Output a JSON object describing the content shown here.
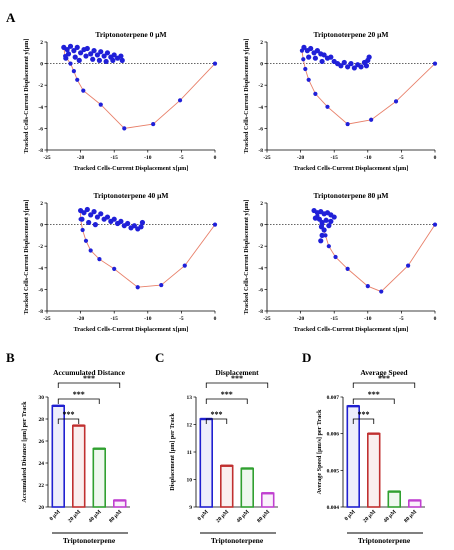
{
  "panel_labels": {
    "A": "A",
    "B": "B",
    "C": "C",
    "D": "D"
  },
  "colors": {
    "track": "#e8806a",
    "dot": "#2020d8",
    "zero_line": "#333333"
  },
  "chart_data": [
    {
      "type": "scatter",
      "id": "t0",
      "title": "Triptonoterpene 0 μM",
      "xlabel": "Tracked Cells-Current Displacement x[μm]",
      "ylabel": "Tracked Cells-Current Displacement y[μm]",
      "xlim": [
        -25,
        0
      ],
      "ylim": [
        -8,
        2
      ],
      "xticks": [
        -25,
        -20,
        -15,
        -10,
        -5,
        0
      ],
      "yticks": [
        2,
        0,
        -2,
        -4,
        -6,
        -8
      ],
      "hline": 0,
      "cluster": [
        [
          -22.5,
          1.5
        ],
        [
          -22,
          1.3
        ],
        [
          -21.5,
          1.6
        ],
        [
          -21,
          1.2
        ],
        [
          -20.5,
          1.5
        ],
        [
          -20,
          1.0
        ],
        [
          -19.5,
          1.3
        ],
        [
          -19,
          1.4
        ],
        [
          -18.5,
          0.9
        ],
        [
          -18,
          1.2
        ],
        [
          -17.5,
          0.8
        ],
        [
          -17,
          1.1
        ],
        [
          -16.5,
          0.7
        ],
        [
          -16,
          1.0
        ],
        [
          -15.5,
          0.6
        ],
        [
          -15,
          0.8
        ],
        [
          -14.5,
          0.5
        ],
        [
          -14,
          0.7
        ],
        [
          -13.8,
          0.3
        ],
        [
          -21.8,
          0.9
        ],
        [
          -20.8,
          0.6
        ],
        [
          -20.2,
          0.3
        ],
        [
          -19.2,
          0.7
        ],
        [
          -18.2,
          0.4
        ],
        [
          -17.2,
          0.3
        ],
        [
          -16.2,
          0.2
        ],
        [
          -15.2,
          0.3
        ],
        [
          -22.2,
          0.5
        ]
      ],
      "track": [
        [
          0,
          0
        ],
        [
          -5.2,
          -3.4
        ],
        [
          -9.2,
          -5.6
        ],
        [
          -13.5,
          -6.0
        ],
        [
          -17,
          -3.8
        ],
        [
          -19.6,
          -2.5
        ],
        [
          -20.5,
          -1.5
        ],
        [
          -21,
          -0.7
        ],
        [
          -21.5,
          0
        ],
        [
          -22.3,
          0.7
        ],
        [
          -22.5,
          1.5
        ]
      ]
    },
    {
      "type": "scatter",
      "id": "t20",
      "title": "Triptonoterpene 20 μM",
      "xlabel": "Tracked Cells-Current Displacement x[μm]",
      "ylabel": "Tracked Cells-Current Displacement y[μm]",
      "xlim": [
        -25,
        0
      ],
      "ylim": [
        -8,
        2
      ],
      "xticks": [
        -25,
        -20,
        -15,
        -10,
        -5,
        0
      ],
      "yticks": [
        2,
        0,
        -2,
        -4,
        -6,
        -8
      ],
      "hline": 0,
      "cluster": [
        [
          -19.5,
          1.5
        ],
        [
          -19,
          1.2
        ],
        [
          -18.5,
          1.4
        ],
        [
          -18,
          1.0
        ],
        [
          -17.5,
          1.2
        ],
        [
          -17,
          0.9
        ],
        [
          -16.5,
          0.8
        ],
        [
          -16,
          0.5
        ],
        [
          -15.5,
          0.6
        ],
        [
          -15,
          0.2
        ],
        [
          -14.5,
          0.0
        ],
        [
          -14,
          -0.2
        ],
        [
          -13.5,
          0.1
        ],
        [
          -13,
          -0.3
        ],
        [
          -12.5,
          0.0
        ],
        [
          -12,
          -0.4
        ],
        [
          -11.5,
          -0.1
        ],
        [
          -11,
          -0.3
        ],
        [
          -10.5,
          0.1
        ],
        [
          -10,
          0.3
        ],
        [
          -9.8,
          0.6
        ],
        [
          -10.2,
          -0.2
        ],
        [
          -18.8,
          0.6
        ],
        [
          -17.8,
          0.5
        ],
        [
          -16.8,
          0.2
        ]
      ],
      "track": [
        [
          0,
          0
        ],
        [
          -5.8,
          -3.5
        ],
        [
          -9.5,
          -5.2
        ],
        [
          -13,
          -5.6
        ],
        [
          -16,
          -4.0
        ],
        [
          -17.8,
          -2.8
        ],
        [
          -18.8,
          -1.5
        ],
        [
          -19.3,
          -0.5
        ],
        [
          -19.6,
          0.4
        ],
        [
          -19.8,
          1.2
        ],
        [
          -19.5,
          1.5
        ]
      ]
    },
    {
      "type": "scatter",
      "id": "t40",
      "title": "Triptonoterpene 40 μM",
      "xlabel": "Tracked Cells-Current Displacement x[μm]",
      "ylabel": "Tracked Cells-Current Displacement y[μm]",
      "xlim": [
        -25,
        0
      ],
      "ylim": [
        -8,
        2
      ],
      "xticks": [
        -25,
        -20,
        -15,
        -10,
        -5,
        0
      ],
      "yticks": [
        2,
        0,
        -2,
        -4,
        -6,
        -8
      ],
      "hline": 0,
      "cluster": [
        [
          -20,
          1.3
        ],
        [
          -19.5,
          1.1
        ],
        [
          -19,
          1.4
        ],
        [
          -18.5,
          0.9
        ],
        [
          -18,
          1.2
        ],
        [
          -17.5,
          0.7
        ],
        [
          -17,
          1.0
        ],
        [
          -16.5,
          0.5
        ],
        [
          -16,
          0.7
        ],
        [
          -15.5,
          0.3
        ],
        [
          -15,
          0.5
        ],
        [
          -14.5,
          0.1
        ],
        [
          -14,
          0.3
        ],
        [
          -13.5,
          -0.1
        ],
        [
          -13,
          0.1
        ],
        [
          -12.5,
          -0.3
        ],
        [
          -12,
          -0.1
        ],
        [
          -11.5,
          -0.4
        ],
        [
          -11,
          -0.2
        ],
        [
          -10.8,
          0.2
        ],
        [
          -19.8,
          0.5
        ],
        [
          -18.8,
          0.2
        ],
        [
          -17.8,
          0.0
        ]
      ],
      "track": [
        [
          0,
          0
        ],
        [
          -4.5,
          -3.8
        ],
        [
          -8,
          -5.6
        ],
        [
          -11.5,
          -5.8
        ],
        [
          -15,
          -4.1
        ],
        [
          -17.2,
          -3.2
        ],
        [
          -18.5,
          -2.4
        ],
        [
          -19.2,
          -1.5
        ],
        [
          -19.7,
          -0.5
        ],
        [
          -20,
          0.5
        ],
        [
          -20,
          1.3
        ]
      ]
    },
    {
      "type": "scatter",
      "id": "t80",
      "title": "Triptonoterpene 80 μM",
      "xlabel": "Tracked Cells-Current Displacement x[μm]",
      "ylabel": "Tracked Cells-Current Displacement y[μm]",
      "xlim": [
        -25,
        0
      ],
      "ylim": [
        -8,
        2
      ],
      "xticks": [
        -25,
        -20,
        -15,
        -10,
        -5,
        0
      ],
      "yticks": [
        2,
        0,
        -2,
        -4,
        -6,
        -8
      ],
      "hline": 0,
      "cluster": [
        [
          -18,
          1.3
        ],
        [
          -17.5,
          1.1
        ],
        [
          -17,
          1.2
        ],
        [
          -16.5,
          1.0
        ],
        [
          -16,
          1.1
        ],
        [
          -15.5,
          0.9
        ],
        [
          -15,
          0.7
        ],
        [
          -17.8,
          0.6
        ],
        [
          -17.2,
          0.5
        ],
        [
          -16.8,
          0.2
        ],
        [
          -16.2,
          0.4
        ],
        [
          -15.8,
          -0.1
        ],
        [
          -16.5,
          -0.5
        ],
        [
          -16.8,
          -1.0
        ],
        [
          -17,
          -1.5
        ],
        [
          -16.9,
          -0.2
        ],
        [
          -15.5,
          0.3
        ]
      ],
      "track": [
        [
          0,
          0
        ],
        [
          -4,
          -3.8
        ],
        [
          -8,
          -6.2
        ],
        [
          -10,
          -5.7
        ],
        [
          -13,
          -4.1
        ],
        [
          -14.8,
          -3.0
        ],
        [
          -15.8,
          -2.0
        ],
        [
          -16.3,
          -1.0
        ],
        [
          -16.8,
          0
        ],
        [
          -17.5,
          0.8
        ],
        [
          -18,
          1.3
        ]
      ]
    },
    {
      "type": "bar",
      "id": "b",
      "title": "Accumulated Distance",
      "ylabel": "Accumulated Distance [μm] per Track",
      "categories": [
        "0 μM",
        "20 μM",
        "40 μM",
        "80 μM"
      ],
      "values": [
        29.2,
        27.4,
        25.3,
        20.6
      ],
      "ylim": [
        20,
        30
      ],
      "yticks": [
        20,
        22,
        24,
        26,
        28,
        30
      ],
      "colors": [
        "#2020d0",
        "#c03030",
        "#30a030",
        "#c040d0"
      ],
      "significance": [
        "***",
        "***",
        "***"
      ],
      "xlabel": "Triptonoterpene"
    },
    {
      "type": "bar",
      "id": "c",
      "title": "Displacement",
      "ylabel": "Displacement [μm] per Track",
      "categories": [
        "0 μM",
        "20 μM",
        "40 μM",
        "80 μM"
      ],
      "values": [
        12.2,
        10.5,
        10.4,
        9.5
      ],
      "ylim": [
        9,
        13
      ],
      "yticks": [
        9,
        10,
        11,
        12,
        13
      ],
      "colors": [
        "#2020d0",
        "#c03030",
        "#30a030",
        "#c040d0"
      ],
      "significance": [
        "***",
        "***",
        "***"
      ],
      "xlabel": "Triptonoterpene"
    },
    {
      "type": "bar",
      "id": "d",
      "title": "Average Speed",
      "ylabel": "Average Speed [μm/s] per Track",
      "categories": [
        "0 μM",
        "20 μM",
        "40 μM",
        "80 μM"
      ],
      "values": [
        0.00675,
        0.006,
        0.00442,
        0.00418
      ],
      "ylim": [
        0.004,
        0.007
      ],
      "yticks": [
        0.004,
        0.005,
        0.006,
        0.007
      ],
      "colors": [
        "#2020d0",
        "#c03030",
        "#30a030",
        "#c040d0"
      ],
      "significance": [
        "***",
        "***",
        "***"
      ],
      "xlabel": "Triptonoterpene"
    }
  ]
}
